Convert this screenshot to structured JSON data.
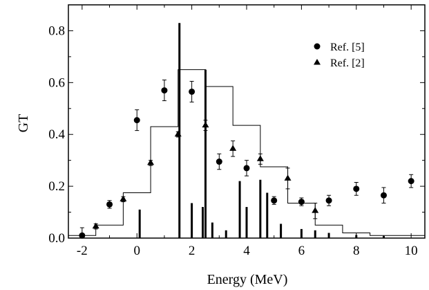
{
  "chart_data": {
    "type": "scatter",
    "title": "",
    "xlabel": "Energy (MeV)",
    "ylabel": "GT",
    "xlim": [
      -2.5,
      10.5
    ],
    "ylim": [
      0,
      0.9
    ],
    "x_ticks": [
      -2,
      0,
      2,
      4,
      6,
      8,
      10
    ],
    "y_ticks": [
      0.0,
      0.2,
      0.4,
      0.6,
      0.8
    ],
    "x_tick_labels": [
      "-2",
      "0",
      "2",
      "4",
      "6",
      "8",
      "10"
    ],
    "y_tick_labels": [
      "0.0",
      "0.2",
      "0.4",
      "0.6",
      "0.8"
    ],
    "grid": false,
    "legend_position": "top-right",
    "series": [
      {
        "name": "Ref. [5]",
        "marker": "circle",
        "x": [
          -2,
          -1,
          0,
          1,
          2,
          3,
          4,
          5,
          6,
          7,
          8,
          9,
          10
        ],
        "y": [
          0.01,
          0.13,
          0.455,
          0.57,
          0.565,
          0.295,
          0.27,
          0.145,
          0.14,
          0.145,
          0.19,
          0.165,
          0.22
        ],
        "err": [
          0.03,
          0.015,
          0.04,
          0.04,
          0.04,
          0.03,
          0.03,
          0.015,
          0.015,
          0.02,
          0.025,
          0.03,
          0.025
        ]
      },
      {
        "name": "Ref. [2]",
        "marker": "triangle",
        "x": [
          -1.5,
          -0.5,
          0.5,
          1.5,
          2.5,
          3.5,
          4.5,
          5.5,
          6.5
        ],
        "y": [
          0.045,
          0.15,
          0.29,
          0.4,
          0.435,
          0.345,
          0.305,
          0.23,
          0.105
        ],
        "err": [
          0.01,
          0.01,
          0.01,
          0.01,
          0.02,
          0.03,
          0.02,
          0.04,
          0.03
        ]
      }
    ],
    "histogram": {
      "edges": [
        -2.5,
        -1.5,
        -0.5,
        0.5,
        1.5,
        2.5,
        3.5,
        4.5,
        5.5,
        6.5,
        7.5,
        8.5,
        10.5
      ],
      "values": [
        0.01,
        0.05,
        0.175,
        0.43,
        0.65,
        0.585,
        0.435,
        0.275,
        0.135,
        0.05,
        0.02,
        0.01
      ]
    },
    "sticks": {
      "x": [
        0.1,
        1.55,
        2.0,
        2.4,
        2.5,
        2.75,
        3.25,
        3.75,
        4.0,
        4.5,
        4.75,
        5.25,
        6.0,
        6.5,
        7.0,
        8.0,
        9.0
      ],
      "y": [
        0.11,
        0.83,
        0.135,
        0.12,
        0.65,
        0.06,
        0.03,
        0.22,
        0.12,
        0.225,
        0.175,
        0.055,
        0.035,
        0.03,
        0.02,
        0.012,
        0.008
      ]
    }
  }
}
